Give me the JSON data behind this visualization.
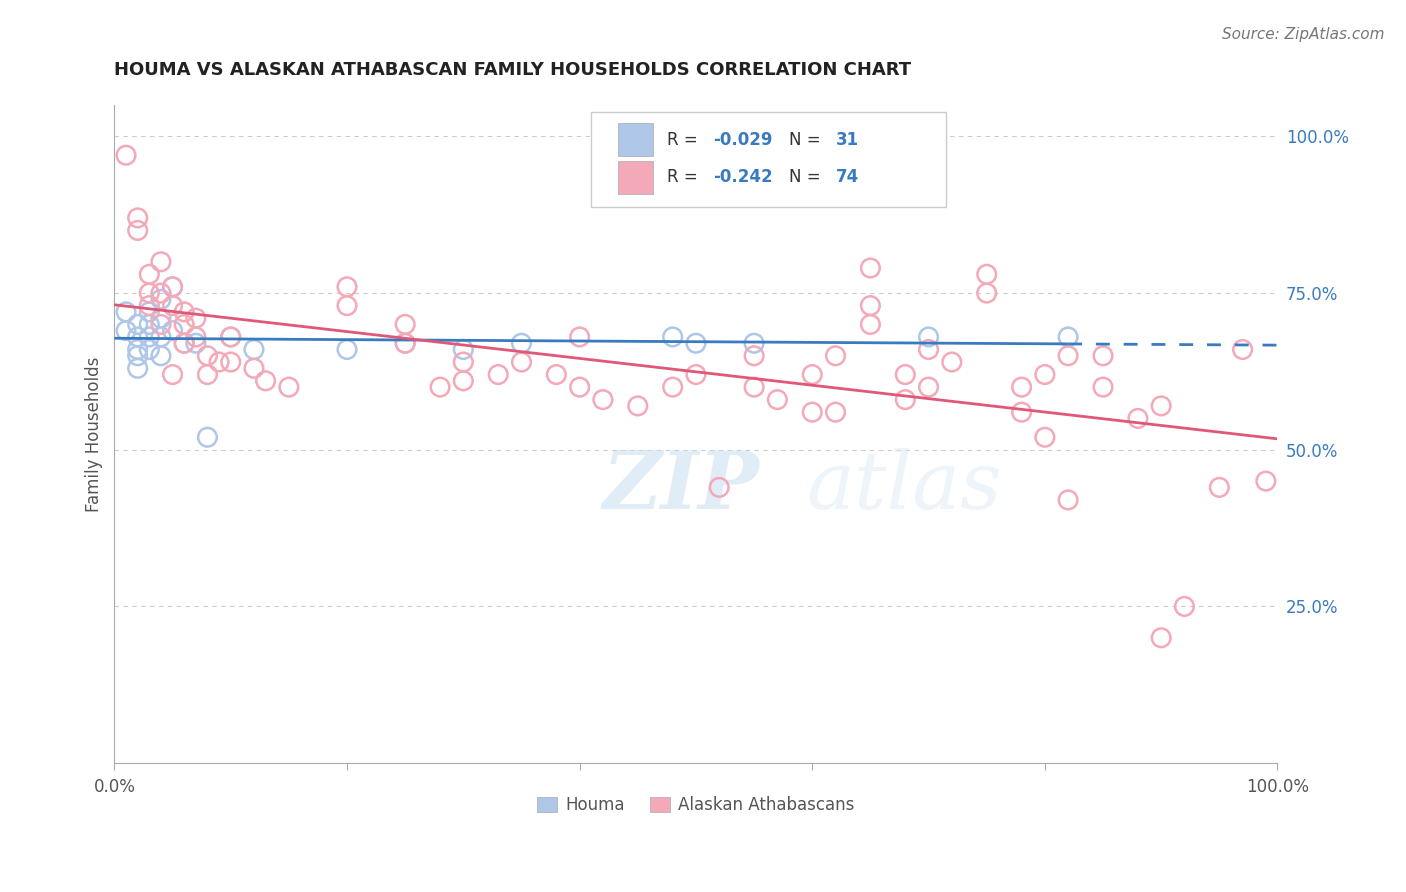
{
  "title": "HOUMA VS ALASKAN ATHABASCAN FAMILY HOUSEHOLDS CORRELATION CHART",
  "source_text": "Source: ZipAtlas.com",
  "ylabel": "Family Households",
  "xlim": [
    0,
    1
  ],
  "ylim": [
    0,
    1.05
  ],
  "legend_r_n": [
    {
      "R": "-0.029",
      "N": "31",
      "dot_color": "#aec6e8",
      "line_color": "#3a7bbf"
    },
    {
      "R": "-0.242",
      "N": "74",
      "dot_color": "#f4a9b8",
      "line_color": "#e05878"
    }
  ],
  "houma_points": [
    [
      0.01,
      0.72
    ],
    [
      0.01,
      0.69
    ],
    [
      0.02,
      0.7
    ],
    [
      0.02,
      0.68
    ],
    [
      0.02,
      0.66
    ],
    [
      0.02,
      0.65
    ],
    [
      0.02,
      0.63
    ],
    [
      0.03,
      0.72
    ],
    [
      0.03,
      0.7
    ],
    [
      0.03,
      0.68
    ],
    [
      0.03,
      0.66
    ],
    [
      0.04,
      0.74
    ],
    [
      0.04,
      0.71
    ],
    [
      0.04,
      0.68
    ],
    [
      0.04,
      0.65
    ],
    [
      0.05,
      0.76
    ],
    [
      0.05,
      0.69
    ],
    [
      0.06,
      0.67
    ],
    [
      0.07,
      0.67
    ],
    [
      0.08,
      0.52
    ],
    [
      0.1,
      0.68
    ],
    [
      0.12,
      0.66
    ],
    [
      0.2,
      0.66
    ],
    [
      0.25,
      0.67
    ],
    [
      0.3,
      0.66
    ],
    [
      0.35,
      0.67
    ],
    [
      0.48,
      0.68
    ],
    [
      0.5,
      0.67
    ],
    [
      0.55,
      0.67
    ],
    [
      0.7,
      0.68
    ],
    [
      0.82,
      0.68
    ]
  ],
  "alaskan_points": [
    [
      0.01,
      0.97
    ],
    [
      0.02,
      0.87
    ],
    [
      0.02,
      0.85
    ],
    [
      0.03,
      0.78
    ],
    [
      0.03,
      0.75
    ],
    [
      0.03,
      0.73
    ],
    [
      0.04,
      0.8
    ],
    [
      0.04,
      0.75
    ],
    [
      0.04,
      0.7
    ],
    [
      0.05,
      0.76
    ],
    [
      0.05,
      0.73
    ],
    [
      0.05,
      0.62
    ],
    [
      0.06,
      0.72
    ],
    [
      0.06,
      0.7
    ],
    [
      0.06,
      0.67
    ],
    [
      0.07,
      0.71
    ],
    [
      0.07,
      0.68
    ],
    [
      0.08,
      0.65
    ],
    [
      0.08,
      0.62
    ],
    [
      0.09,
      0.64
    ],
    [
      0.1,
      0.68
    ],
    [
      0.1,
      0.64
    ],
    [
      0.12,
      0.63
    ],
    [
      0.13,
      0.61
    ],
    [
      0.15,
      0.6
    ],
    [
      0.2,
      0.76
    ],
    [
      0.2,
      0.73
    ],
    [
      0.25,
      0.7
    ],
    [
      0.25,
      0.67
    ],
    [
      0.28,
      0.6
    ],
    [
      0.3,
      0.64
    ],
    [
      0.3,
      0.61
    ],
    [
      0.33,
      0.62
    ],
    [
      0.35,
      0.64
    ],
    [
      0.38,
      0.62
    ],
    [
      0.4,
      0.68
    ],
    [
      0.4,
      0.6
    ],
    [
      0.42,
      0.58
    ],
    [
      0.45,
      0.57
    ],
    [
      0.48,
      0.6
    ],
    [
      0.5,
      0.62
    ],
    [
      0.52,
      0.44
    ],
    [
      0.55,
      0.65
    ],
    [
      0.55,
      0.6
    ],
    [
      0.57,
      0.58
    ],
    [
      0.6,
      0.62
    ],
    [
      0.6,
      0.56
    ],
    [
      0.62,
      0.65
    ],
    [
      0.62,
      0.56
    ],
    [
      0.65,
      0.79
    ],
    [
      0.65,
      0.73
    ],
    [
      0.65,
      0.7
    ],
    [
      0.68,
      0.62
    ],
    [
      0.68,
      0.58
    ],
    [
      0.7,
      0.66
    ],
    [
      0.7,
      0.6
    ],
    [
      0.72,
      0.64
    ],
    [
      0.75,
      0.78
    ],
    [
      0.75,
      0.75
    ],
    [
      0.78,
      0.6
    ],
    [
      0.78,
      0.56
    ],
    [
      0.8,
      0.62
    ],
    [
      0.8,
      0.52
    ],
    [
      0.82,
      0.65
    ],
    [
      0.82,
      0.42
    ],
    [
      0.85,
      0.65
    ],
    [
      0.85,
      0.6
    ],
    [
      0.88,
      0.55
    ],
    [
      0.9,
      0.2
    ],
    [
      0.9,
      0.57
    ],
    [
      0.92,
      0.25
    ],
    [
      0.95,
      0.44
    ],
    [
      0.97,
      0.66
    ],
    [
      0.99,
      0.45
    ]
  ],
  "watermark_text": "ZIPatlas",
  "background_color": "#ffffff",
  "grid_color": "#cccccc",
  "grid_yticks": [
    0.25,
    0.5,
    0.75,
    1.0
  ],
  "right_ytick_labels": [
    "25.0%",
    "50.0%",
    "75.0%",
    "100.0%"
  ],
  "xtick_positions": [
    0.0,
    0.2,
    0.4,
    0.6,
    0.8,
    1.0
  ],
  "xtick_labels": [
    "0.0%",
    "",
    "",
    "",
    "",
    "100.0%"
  ]
}
